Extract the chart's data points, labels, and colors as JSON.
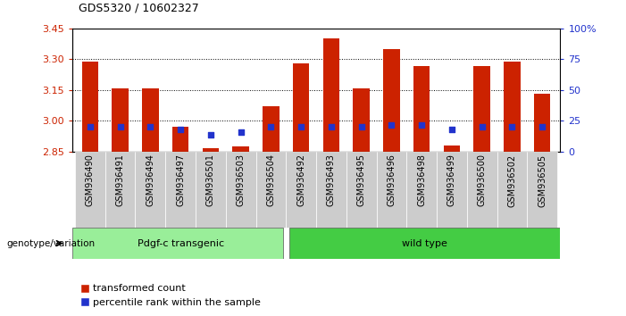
{
  "title": "GDS5320 / 10602327",
  "samples": [
    "GSM936490",
    "GSM936491",
    "GSM936494",
    "GSM936497",
    "GSM936501",
    "GSM936503",
    "GSM936504",
    "GSM936492",
    "GSM936493",
    "GSM936495",
    "GSM936496",
    "GSM936498",
    "GSM936499",
    "GSM936500",
    "GSM936502",
    "GSM936505"
  ],
  "transformed_counts": [
    3.29,
    3.16,
    3.16,
    2.97,
    2.865,
    2.875,
    3.07,
    3.28,
    3.4,
    3.16,
    3.35,
    3.265,
    2.88,
    3.265,
    3.29,
    3.13
  ],
  "percentile_ranks": [
    20,
    20,
    20,
    18,
    14,
    16,
    20,
    20,
    20,
    20,
    22,
    22,
    18,
    20,
    20,
    20
  ],
  "y_min": 2.85,
  "y_max": 3.45,
  "y_ticks": [
    2.85,
    3.0,
    3.15,
    3.3,
    3.45
  ],
  "right_y_ticks": [
    0,
    25,
    50,
    75,
    100
  ],
  "right_y_labels": [
    "0",
    "25",
    "50",
    "75",
    "100%"
  ],
  "bar_color": "#cc2200",
  "blue_color": "#2233cc",
  "group1_label": "Pdgf-c transgenic",
  "group2_label": "wild type",
  "group1_color": "#99ee99",
  "group2_color": "#44cc44",
  "group1_count": 7,
  "group2_count": 9,
  "legend1": "transformed count",
  "legend2": "percentile rank within the sample",
  "genotype_label": "genotype/variation",
  "bar_width": 0.55,
  "grid_ticks": [
    3.0,
    3.15,
    3.3
  ],
  "tick_gray": "#cccccc"
}
